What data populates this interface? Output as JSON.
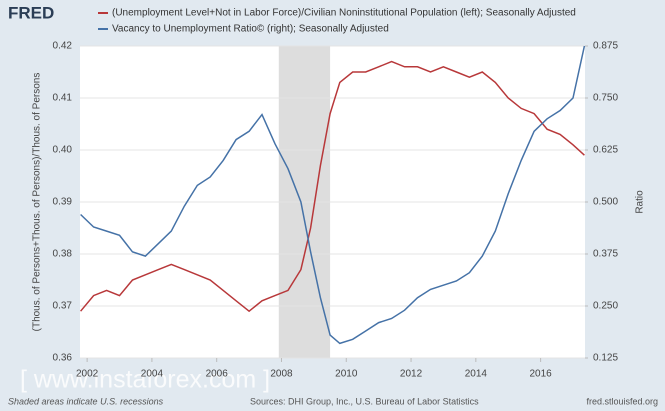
{
  "logo": "FRED",
  "watermark": "[ www.instaforex.com ]",
  "chart_data": {
    "type": "line",
    "ylabel": "(Thous. of Persons+Thous. of Persons)/Thous. of Persons",
    "y2label": "Ratio",
    "footnote": "Shaded areas indicate U.S. recessions",
    "source": "Sources: DHI Group, Inc., U.S. Bureau of Labor Statistics",
    "url": "fred.stlouisfed.org",
    "x": [
      2001.8,
      2002.2,
      2002.6,
      2003.0,
      2003.4,
      2003.8,
      2004.2,
      2004.6,
      2005.0,
      2005.4,
      2005.8,
      2006.2,
      2006.6,
      2007.0,
      2007.4,
      2007.8,
      2008.2,
      2008.6,
      2008.9,
      2009.2,
      2009.5,
      2009.8,
      2010.2,
      2010.6,
      2011.0,
      2011.4,
      2011.8,
      2012.2,
      2012.6,
      2013.0,
      2013.4,
      2013.8,
      2014.2,
      2014.6,
      2015.0,
      2015.4,
      2015.8,
      2016.2,
      2016.6,
      2017.0,
      2017.35
    ],
    "series": [
      {
        "name": "(Unemployment Level+Not in Labor Force)/Civilian Noninstitutional Population (left); Seasonally Adjusted",
        "color": "#b8383a",
        "values": [
          0.369,
          0.372,
          0.373,
          0.372,
          0.375,
          0.376,
          0.377,
          0.378,
          0.377,
          0.376,
          0.375,
          0.373,
          0.371,
          0.369,
          0.371,
          0.372,
          0.373,
          0.377,
          0.385,
          0.397,
          0.407,
          0.413,
          0.415,
          0.415,
          0.416,
          0.417,
          0.416,
          0.416,
          0.415,
          0.416,
          0.415,
          0.414,
          0.415,
          0.413,
          0.41,
          0.408,
          0.407,
          0.404,
          0.403,
          0.401,
          0.399
        ]
      },
      {
        "name": "Vacancy to Unemployment Ratio© (right); Seasonally Adjusted",
        "color": "#4572a7",
        "axis": "y2",
        "values": [
          0.47,
          0.44,
          0.43,
          0.42,
          0.38,
          0.37,
          0.4,
          0.43,
          0.49,
          0.54,
          0.56,
          0.6,
          0.65,
          0.67,
          0.71,
          0.64,
          0.58,
          0.5,
          0.38,
          0.27,
          0.18,
          0.16,
          0.17,
          0.19,
          0.21,
          0.22,
          0.24,
          0.27,
          0.29,
          0.3,
          0.31,
          0.33,
          0.37,
          0.43,
          0.52,
          0.6,
          0.67,
          0.7,
          0.72,
          0.75,
          0.875
        ]
      }
    ],
    "recessions": [
      [
        2007.917,
        2009.5
      ]
    ],
    "recession_color": "#dddddd",
    "xlim": [
      2001.78,
      2017.37
    ],
    "xticks": [
      2002,
      2004,
      2006,
      2008,
      2010,
      2012,
      2014,
      2016
    ],
    "ylim": [
      0.36,
      0.42
    ],
    "yticks": [
      0.36,
      0.37,
      0.38,
      0.39,
      {
        "value": 0.4,
        "label": "0.40"
      },
      0.41,
      0.42
    ],
    "y2lim": [
      0.125,
      0.875
    ],
    "y2ticks": [
      0.125,
      {
        "value": 0.25,
        "label": "0.250"
      },
      0.375,
      {
        "value": 0.5,
        "label": "0.500"
      },
      0.625,
      {
        "value": 0.75,
        "label": "0.750"
      },
      0.875
    ],
    "grid": true
  }
}
